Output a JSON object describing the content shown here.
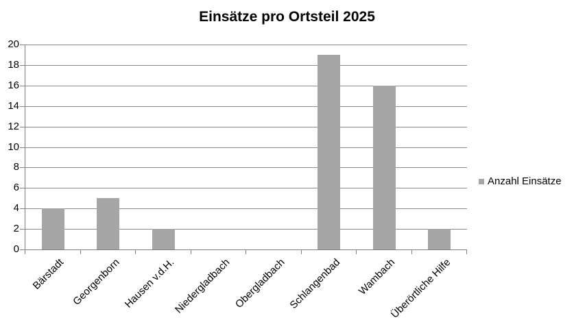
{
  "chart_data": {
    "type": "bar",
    "title": "Einsätze pro Ortsteil 2025",
    "categories": [
      "Bärstadt",
      "Georgenborn",
      "Hausen v.d.H.",
      "Niedergladbach",
      "Obergladbach",
      "Schlangenbad",
      "Wambach",
      "Überörtliche Hilfe"
    ],
    "series": [
      {
        "name": "Anzahl Einsätze",
        "values": [
          4,
          5,
          2,
          0,
          0,
          19,
          16,
          2
        ]
      }
    ],
    "xlabel": "",
    "ylabel": "",
    "ylim": [
      0,
      20
    ],
    "ytick_step": 2,
    "grid": true,
    "legend_position": "right",
    "colors": {
      "bar": "#a6a6a6",
      "gridline": "#898989",
      "axis": "#7f7f7f",
      "title_text": "#000000",
      "tick_text": "#000000"
    }
  }
}
